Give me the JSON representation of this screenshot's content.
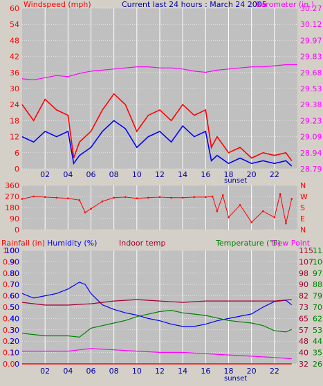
{
  "colors": {
    "wind": "#ff0000",
    "wind_gust": "#0000ff",
    "barometer": "#ff00ff",
    "humidity": "#0000ff",
    "indoor": "#a00030",
    "temperature": "#008000",
    "dewpoint": "#ff00ff",
    "rainfall": "#ff0000",
    "plot_bg": "#c0c0c0",
    "grid": "#ffffff",
    "title": "#0000a0"
  },
  "header": {
    "wind_label": "Windspeed (mph)",
    "title": "Current last 24 hours : March 24 2005",
    "baro_label": "Barometer (in.)"
  },
  "sunset_label": "sunset",
  "chart_data": [
    {
      "type": "line",
      "title": "Current last 24 hours : March 24 2005",
      "x_ticks": [
        "02",
        "04",
        "06",
        "08",
        "10",
        "12",
        "14",
        "16",
        "18",
        "20",
        "22"
      ],
      "xlim": [
        0,
        24
      ],
      "left_axis": {
        "label": "Windspeed (mph)",
        "ticks": [
          "0",
          "6",
          "12",
          "18",
          "24",
          "30",
          "36",
          "42",
          "48",
          "54",
          "60"
        ],
        "ylim": [
          0,
          60
        ]
      },
      "right_axis": {
        "label": "Barometer (in.)",
        "ticks": [
          "28.79",
          "28.94",
          "29.09",
          "29.23",
          "29.38",
          "29.53",
          "29.68",
          "29.83",
          "29.97",
          "30.12",
          "30.27"
        ],
        "ylim": [
          28.79,
          30.27
        ]
      },
      "series": [
        {
          "name": "Windspeed",
          "color": "#ff0000",
          "x": [
            0,
            1,
            2,
            3,
            4,
            4.5,
            5,
            6,
            7,
            8,
            9,
            10,
            11,
            12,
            13,
            14,
            15,
            16,
            16.5,
            17,
            18,
            19,
            20,
            21,
            22,
            23,
            23.5
          ],
          "values": [
            24,
            18,
            26,
            22,
            20,
            4,
            10,
            14,
            22,
            28,
            24,
            14,
            20,
            22,
            18,
            24,
            20,
            22,
            8,
            12,
            6,
            8,
            4,
            6,
            5,
            6,
            3
          ]
        },
        {
          "name": "Gust",
          "color": "#0000ff",
          "x": [
            0,
            1,
            2,
            3,
            4,
            4.5,
            5,
            6,
            7,
            8,
            9,
            10,
            11,
            12,
            13,
            14,
            15,
            16,
            16.5,
            17,
            18,
            19,
            20,
            21,
            22,
            23,
            23.5
          ],
          "values": [
            12,
            10,
            14,
            12,
            14,
            2,
            5,
            8,
            14,
            18,
            15,
            8,
            12,
            14,
            10,
            16,
            12,
            14,
            3,
            5,
            2,
            4,
            2,
            3,
            2,
            3,
            1
          ]
        },
        {
          "name": "Barometer",
          "color": "#ff00ff",
          "x": [
            0,
            1,
            2,
            3,
            4,
            5,
            6,
            7,
            8,
            9,
            10,
            11,
            12,
            13,
            14,
            15,
            16,
            17,
            18,
            19,
            20,
            21,
            22,
            23,
            24
          ],
          "values": [
            29.62,
            29.61,
            29.63,
            29.65,
            29.64,
            29.67,
            29.69,
            29.7,
            29.71,
            29.72,
            29.73,
            29.73,
            29.72,
            29.72,
            29.71,
            29.69,
            29.68,
            29.7,
            29.71,
            29.72,
            29.73,
            29.73,
            29.74,
            29.75,
            29.75
          ]
        }
      ]
    },
    {
      "type": "scatter",
      "x_ticks": [],
      "xlim": [
        0,
        24
      ],
      "left_axis": {
        "ticks": [
          "0",
          "90",
          "180",
          "270",
          "360"
        ],
        "ylim": [
          0,
          360
        ]
      },
      "right_axis": {
        "ticks": [
          "N",
          "E",
          "S",
          "W",
          "N"
        ]
      },
      "series": [
        {
          "name": "Wind direction",
          "color": "#ff0000",
          "x": [
            0,
            1,
            2,
            3,
            4,
            5,
            5.5,
            6,
            7,
            8,
            9,
            10,
            11,
            12,
            13,
            14,
            15,
            16,
            16.6,
            17,
            17.5,
            18,
            19,
            20,
            21,
            22,
            22.5,
            23,
            23.5
          ],
          "values": [
            250,
            270,
            265,
            260,
            255,
            240,
            140,
            170,
            230,
            260,
            265,
            255,
            260,
            265,
            260,
            260,
            265,
            265,
            270,
            150,
            280,
            100,
            200,
            60,
            150,
            100,
            290,
            50,
            250
          ]
        }
      ]
    },
    {
      "type": "line",
      "x_ticks": [
        "02",
        "04",
        "06",
        "08",
        "10",
        "12",
        "14",
        "16",
        "18",
        "20",
        "22"
      ],
      "xlim": [
        0,
        24
      ],
      "labels": {
        "rainfall": "Rainfall (in)",
        "humidity": "Humidity (%)",
        "indoor": "Indoor temp",
        "temperature": "Temperature (°F)",
        "dewpoint": "Dew Point"
      },
      "axis_rain_ticks": [
        "0.0",
        "0.1",
        "0.2",
        "0.3",
        "0.4",
        "0.5",
        "0.6",
        "0.7",
        "0.8",
        "0.9",
        "1.0"
      ],
      "axis_hum_ticks": [
        "0",
        "10",
        "20",
        "30",
        "40",
        "50",
        "60",
        "70",
        "80",
        "90",
        "100"
      ],
      "axis_temp_ticks_a": [
        "32",
        "40",
        "48",
        "57",
        "65",
        "73",
        "82",
        "90",
        "98",
        "107",
        "115"
      ],
      "axis_temp_ticks_b": [
        "26",
        "35",
        "44",
        "53",
        "62",
        "70",
        "79",
        "88",
        "97",
        "106",
        "115"
      ],
      "series": [
        {
          "name": "Humidity",
          "color": "#0000ff",
          "x": [
            0,
            1,
            2,
            3,
            4,
            5,
            5.5,
            6,
            7,
            8,
            9,
            10,
            11,
            12,
            13,
            14,
            15,
            16,
            17,
            18,
            19,
            20,
            21,
            22,
            23,
            23.5
          ],
          "values": [
            62,
            58,
            60,
            62,
            66,
            72,
            70,
            62,
            52,
            48,
            45,
            43,
            40,
            38,
            35,
            33,
            33,
            35,
            38,
            40,
            42,
            44,
            50,
            55,
            56,
            52
          ]
        },
        {
          "name": "Indoor temp",
          "color": "#a00030",
          "x": [
            0,
            2,
            4,
            6,
            8,
            10,
            12,
            14,
            16,
            18,
            20,
            22,
            23.5
          ],
          "values": [
            77,
            75,
            75,
            76,
            78,
            79,
            78,
            77,
            78,
            78,
            78,
            78,
            79
          ]
        },
        {
          "name": "Temperature",
          "color": "#008000",
          "x": [
            0,
            1,
            2,
            3,
            4,
            5,
            6,
            7,
            8,
            9,
            10,
            11,
            12,
            13,
            14,
            15,
            16,
            17,
            18,
            19,
            20,
            21,
            22,
            23,
            23.5
          ],
          "values": [
            50,
            49,
            48,
            48,
            48,
            47,
            54,
            56,
            58,
            60,
            63,
            65,
            67,
            68,
            66,
            65,
            64,
            62,
            60,
            59,
            58,
            56,
            52,
            51,
            53
          ]
        },
        {
          "name": "Dew Point",
          "color": "#ff00ff",
          "x": [
            0,
            2,
            4,
            5,
            6,
            8,
            10,
            12,
            14,
            16,
            18,
            20,
            22,
            23.5
          ],
          "values": [
            36,
            36,
            36,
            37,
            38,
            37,
            36,
            35,
            35,
            34,
            33,
            32,
            31,
            30
          ]
        },
        {
          "name": "Rainfall",
          "color": "#ff0000",
          "x": [
            0,
            23.5
          ],
          "values": [
            0,
            0
          ]
        }
      ]
    }
  ]
}
